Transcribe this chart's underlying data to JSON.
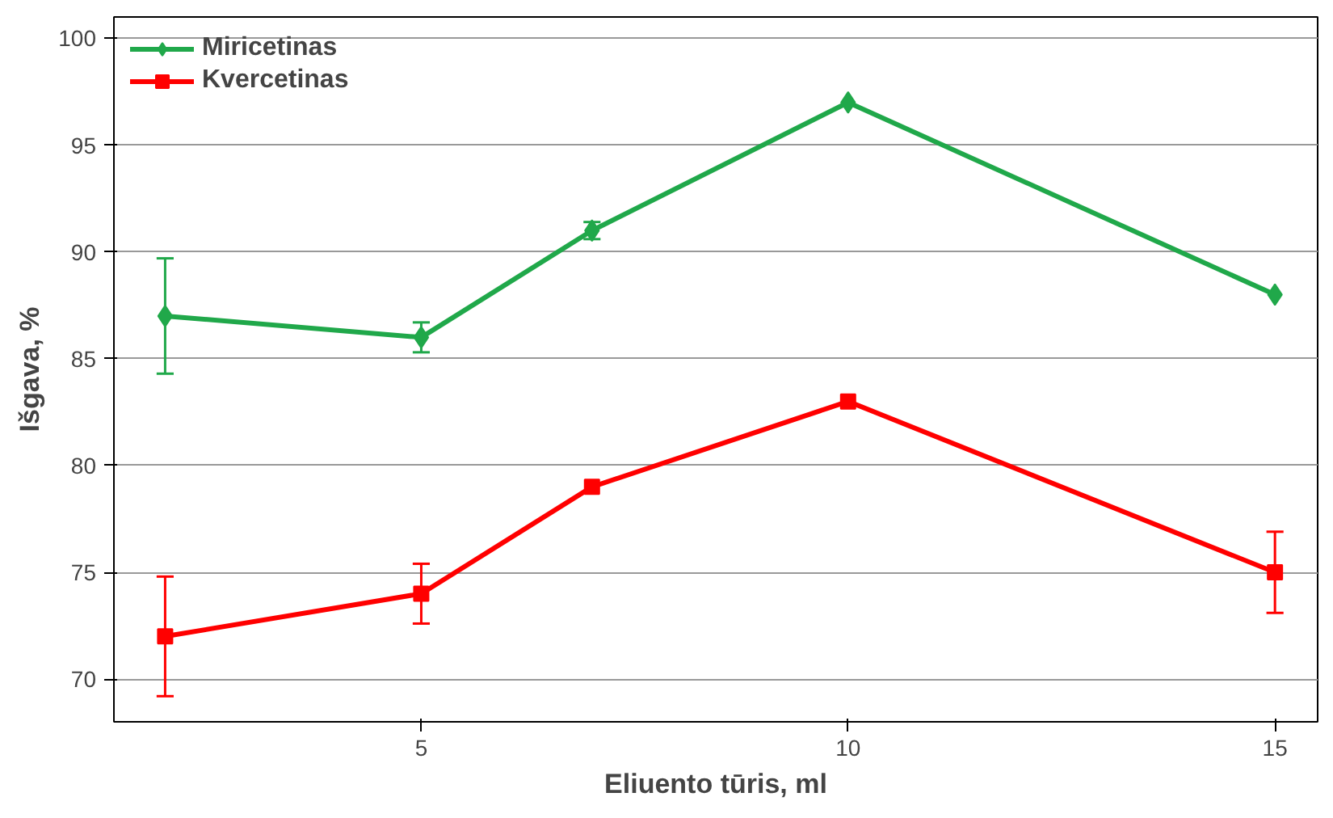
{
  "chart_data": {
    "type": "line",
    "xlabel": "Eliuento tūris, ml",
    "ylabel": "Išgava, %",
    "x": [
      2,
      5,
      7,
      10,
      15
    ],
    "series": [
      {
        "name": "Miricetinas",
        "color": "#20a84a",
        "marker": "diamond",
        "values": [
          87,
          86,
          91,
          97,
          88
        ],
        "errors": [
          2.7,
          0.7,
          0.4,
          null,
          null
        ]
      },
      {
        "name": "Kvercetinas",
        "color": "#ff0000",
        "marker": "square",
        "values": [
          72,
          74,
          79,
          83,
          75
        ],
        "errors": [
          2.8,
          1.4,
          null,
          null,
          1.9
        ]
      }
    ],
    "xlim": [
      1.4,
      15.5
    ],
    "xticks": [
      5,
      10,
      15
    ],
    "ylim": [
      68,
      101
    ],
    "yticks": [
      70,
      75,
      80,
      85,
      90,
      95,
      100
    ],
    "grid": "y",
    "legend": "top left",
    "line_style": "solid"
  }
}
